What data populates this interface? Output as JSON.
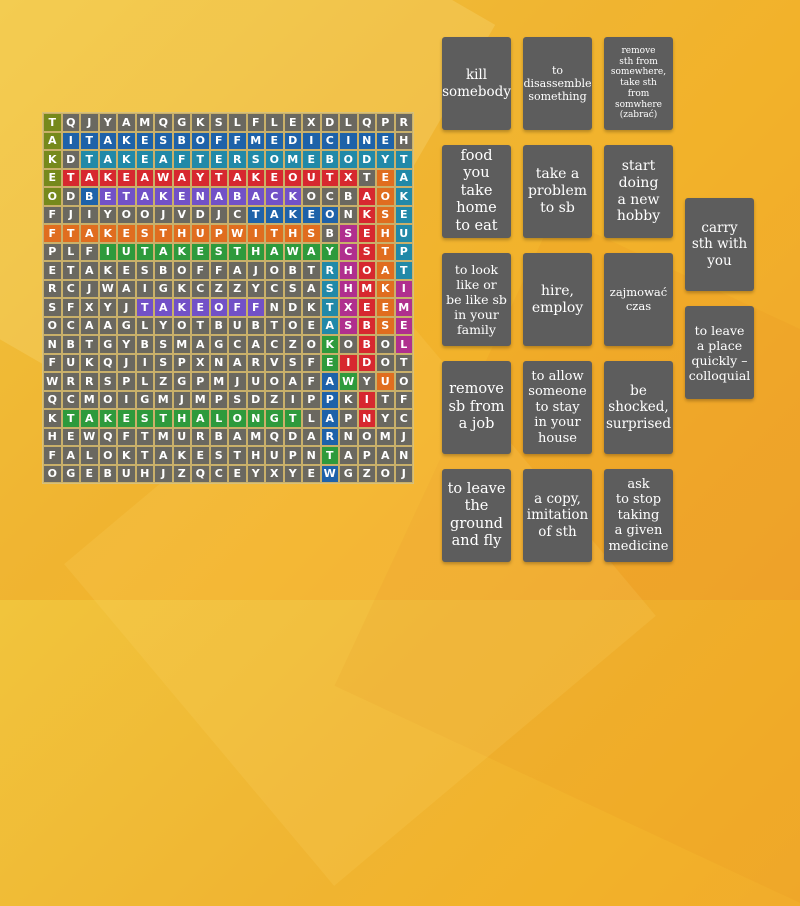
{
  "grid": {
    "rows": [
      "TQJYAMQGKSLFLEXDLQPR",
      "AITAKESBOFFMEDICINEH",
      "KDTAKEAFTERSOMEBODYT",
      "ETAKEAWAYTAKEOUTXTEA",
      "ODBETAKENABACKOCBAOK",
      "FJIYOOJVDJCTAKEONKSE",
      "FTAKESTHUPWITHSBSEHU",
      "PLFIUTAKESTHAWAYCSTP",
      "ETAKESBOFFAJOBTRHOAT",
      "RCJWAIGKCZZYCSASHMKI",
      "SFXYJTAKEOFFNDKTXEEM",
      "OCAAGLYOTBUBTOEASBSE",
      "NBTGYBSMAGCACZOKOBOL",
      "FUKQJISPXNARVSFEIDOT",
      "WRRSPLZGPMJUOAFAWYUO",
      "QCMOIGMJMPSDZIPPKITF",
      "KTAKESTHALONGTLAPNYC",
      "HEWQFTMURBAMQDARNOMJ",
      "FALOKTAKESTHUPNTAPAN",
      "OGEBUHJZQCEYXYEWGZOJ"
    ],
    "colors": [
      [
        "olive",
        "gray",
        "gray",
        "gray",
        "gray",
        "gray",
        "gray",
        "gray",
        "gray",
        "gray",
        "gray",
        "gray",
        "gray",
        "gray",
        "gray",
        "gray",
        "gray",
        "gray",
        "gray",
        "gray"
      ],
      [
        "olive",
        "blue",
        "blue",
        "blue",
        "blue",
        "blue",
        "blue",
        "blue",
        "blue",
        "blue",
        "blue",
        "blue",
        "blue",
        "blue",
        "blue",
        "blue",
        "blue",
        "blue",
        "blue",
        "gray"
      ],
      [
        "olive",
        "gray",
        "teal",
        "teal",
        "teal",
        "teal",
        "teal",
        "teal",
        "teal",
        "teal",
        "teal",
        "teal",
        "teal",
        "teal",
        "teal",
        "teal",
        "teal",
        "teal",
        "teal",
        "teal"
      ],
      [
        "olive",
        "red",
        "red",
        "red",
        "red",
        "red",
        "red",
        "red",
        "red",
        "red",
        "red",
        "red",
        "red",
        "red",
        "red",
        "red",
        "red",
        "gray",
        "orange",
        "teal"
      ],
      [
        "olive",
        "gray",
        "blue",
        "purple",
        "purple",
        "purple",
        "purple",
        "purple",
        "purple",
        "purple",
        "purple",
        "purple",
        "purple",
        "purple",
        "gray",
        "gray",
        "gray",
        "red",
        "orange",
        "teal"
      ],
      [
        "gray",
        "gray",
        "gray",
        "gray",
        "gray",
        "gray",
        "gray",
        "gray",
        "gray",
        "gray",
        "gray",
        "blue",
        "blue",
        "blue",
        "blue",
        "blue",
        "gray",
        "red",
        "orange",
        "teal"
      ],
      [
        "orange",
        "orange",
        "orange",
        "orange",
        "orange",
        "orange",
        "orange",
        "orange",
        "orange",
        "orange",
        "orange",
        "orange",
        "orange",
        "orange",
        "orange",
        "gray",
        "magenta",
        "red",
        "orange",
        "teal"
      ],
      [
        "gray",
        "gray",
        "gray",
        "green",
        "green",
        "green",
        "green",
        "green",
        "green",
        "green",
        "green",
        "green",
        "green",
        "green",
        "green",
        "green",
        "magenta",
        "red",
        "orange",
        "teal"
      ],
      [
        "gray",
        "gray",
        "gray",
        "gray",
        "gray",
        "gray",
        "gray",
        "gray",
        "gray",
        "gray",
        "gray",
        "gray",
        "gray",
        "gray",
        "gray",
        "teal",
        "magenta",
        "red",
        "orange",
        "teal"
      ],
      [
        "gray",
        "gray",
        "gray",
        "gray",
        "gray",
        "gray",
        "gray",
        "gray",
        "gray",
        "gray",
        "gray",
        "gray",
        "gray",
        "gray",
        "gray",
        "teal",
        "magenta",
        "red",
        "orange",
        "magenta"
      ],
      [
        "gray",
        "gray",
        "gray",
        "gray",
        "gray",
        "purple",
        "purple",
        "purple",
        "purple",
        "purple",
        "purple",
        "purple",
        "gray",
        "gray",
        "gray",
        "teal",
        "magenta",
        "red",
        "orange",
        "magenta"
      ],
      [
        "gray",
        "gray",
        "gray",
        "gray",
        "gray",
        "gray",
        "gray",
        "gray",
        "gray",
        "gray",
        "gray",
        "gray",
        "gray",
        "gray",
        "gray",
        "teal",
        "magenta",
        "red",
        "orange",
        "magenta"
      ],
      [
        "gray",
        "gray",
        "gray",
        "gray",
        "gray",
        "gray",
        "gray",
        "gray",
        "gray",
        "gray",
        "gray",
        "gray",
        "gray",
        "gray",
        "gray",
        "green",
        "gray",
        "red",
        "gray",
        "magenta"
      ],
      [
        "gray",
        "gray",
        "gray",
        "gray",
        "gray",
        "gray",
        "gray",
        "gray",
        "gray",
        "gray",
        "gray",
        "gray",
        "gray",
        "gray",
        "gray",
        "green",
        "red",
        "red",
        "gray",
        "gray"
      ],
      [
        "gray",
        "gray",
        "gray",
        "gray",
        "gray",
        "gray",
        "gray",
        "gray",
        "gray",
        "gray",
        "gray",
        "gray",
        "gray",
        "gray",
        "gray",
        "blue",
        "green",
        "gray",
        "orange",
        "gray"
      ],
      [
        "gray",
        "gray",
        "gray",
        "gray",
        "gray",
        "gray",
        "gray",
        "gray",
        "gray",
        "gray",
        "gray",
        "gray",
        "gray",
        "gray",
        "gray",
        "blue",
        "gray",
        "red",
        "gray",
        "gray"
      ],
      [
        "gray",
        "green",
        "green",
        "green",
        "green",
        "green",
        "green",
        "green",
        "green",
        "green",
        "green",
        "green",
        "green",
        "green",
        "gray",
        "blue",
        "gray",
        "red",
        "gray",
        "gray"
      ],
      [
        "gray",
        "gray",
        "gray",
        "gray",
        "gray",
        "gray",
        "gray",
        "gray",
        "gray",
        "gray",
        "gray",
        "gray",
        "gray",
        "gray",
        "gray",
        "blue",
        "gray",
        "gray",
        "gray",
        "gray"
      ],
      [
        "gray",
        "gray",
        "gray",
        "gray",
        "gray",
        "gray",
        "gray",
        "gray",
        "gray",
        "gray",
        "gray",
        "gray",
        "gray",
        "gray",
        "gray",
        "green",
        "gray",
        "gray",
        "gray",
        "gray"
      ],
      [
        "gray",
        "gray",
        "gray",
        "gray",
        "gray",
        "gray",
        "gray",
        "gray",
        "gray",
        "gray",
        "gray",
        "gray",
        "gray",
        "gray",
        "gray",
        "blue",
        "gray",
        "gray",
        "gray",
        "gray"
      ]
    ]
  },
  "cards": [
    {
      "lines": [
        "kill",
        "somebody"
      ]
    },
    {
      "lines": [
        "to",
        "disassemble",
        "something"
      ]
    },
    {
      "lines": [
        "remove",
        "sth from",
        "somewhere,",
        "take sth from",
        "somwhere",
        "(zabrać)"
      ]
    },
    {
      "lines": [
        "food",
        "you take",
        "home",
        "to eat"
      ]
    },
    {
      "lines": [
        "take a",
        "problem",
        "to sb"
      ]
    },
    {
      "lines": [
        "start",
        "doing",
        "a new",
        "hobby"
      ]
    },
    {
      "lines": [
        "carry",
        "sth with",
        "you"
      ]
    },
    {
      "lines": [
        "to look",
        "like or",
        "be like sb",
        "in your",
        "family"
      ]
    },
    {
      "lines": [
        "hire,",
        "employ"
      ]
    },
    {
      "lines": [
        "zajmować",
        "czas"
      ]
    },
    {
      "lines": [
        "to leave",
        "a place",
        "quickly –",
        "colloquial"
      ]
    },
    {
      "lines": [
        "remove",
        "sb from",
        "a job"
      ]
    },
    {
      "lines": [
        "to allow",
        "someone",
        "to stay",
        "in your",
        "house"
      ]
    },
    {
      "lines": [
        "be",
        "shocked,",
        "surprised"
      ]
    },
    {
      "lines": [
        "to leave",
        "the",
        "ground",
        "and fly"
      ]
    },
    {
      "lines": [
        "a copy,",
        "imitation",
        "of sth"
      ]
    },
    {
      "lines": [
        "ask",
        "to stop",
        "taking",
        "a given",
        "medicine"
      ]
    }
  ]
}
